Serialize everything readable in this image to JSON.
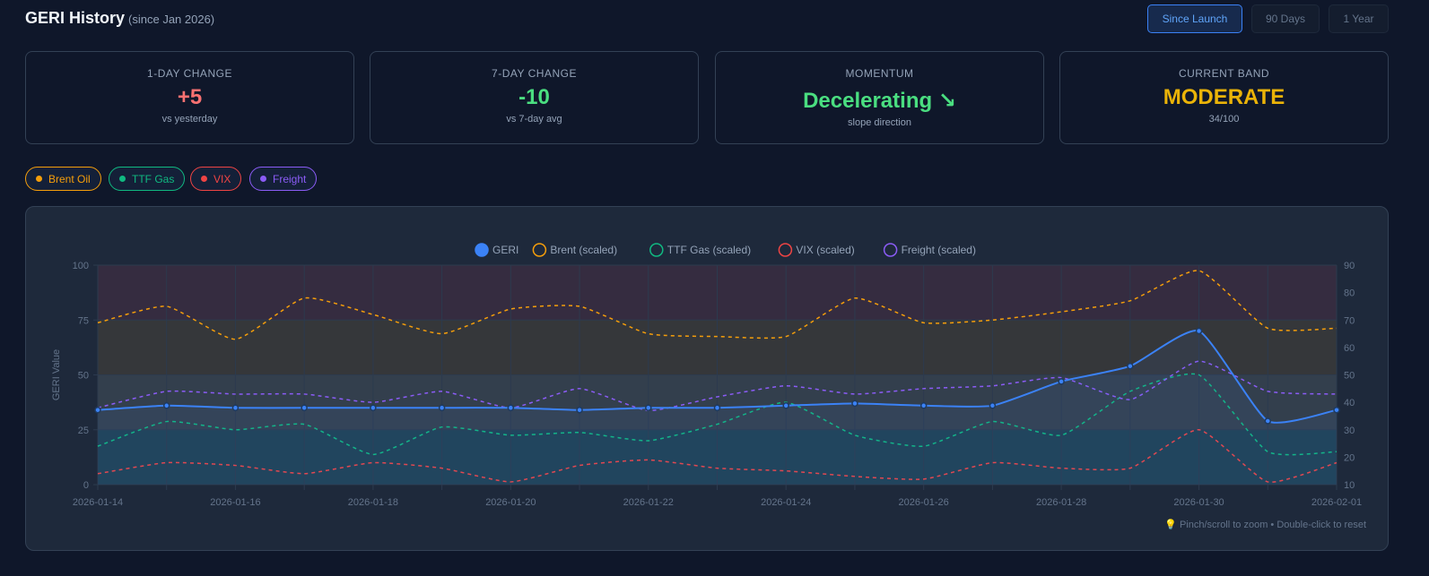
{
  "header": {
    "title": "GERI History",
    "subtitle": "(since Jan 2026)"
  },
  "range_buttons": [
    {
      "label": "Since Launch",
      "active": true
    },
    {
      "label": "90 Days",
      "active": false
    },
    {
      "label": "1 Year",
      "active": false
    }
  ],
  "cards": [
    {
      "label": "1-DAY CHANGE",
      "value": "+5",
      "sub": "vs yesterday",
      "color": "#f87171"
    },
    {
      "label": "7-DAY CHANGE",
      "value": "-10",
      "sub": "vs 7-day avg",
      "color": "#4ade80"
    },
    {
      "label": "MOMENTUM",
      "value": "Decelerating ↘",
      "sub": "slope direction",
      "color": "#4ade80"
    },
    {
      "label": "CURRENT BAND",
      "value": "MODERATE",
      "sub": "34/100",
      "color": "#eab308"
    }
  ],
  "toggles": [
    {
      "label": "Brent Oil",
      "color": "#f59e0b"
    },
    {
      "label": "TTF Gas",
      "color": "#10b981"
    },
    {
      "label": "VIX",
      "color": "#ef4444"
    },
    {
      "label": "Freight",
      "color": "#8b5cf6"
    }
  ],
  "hint": "💡 Pinch/scroll to zoom • Double-click to reset",
  "chart_data": {
    "type": "line",
    "ylabel": "GERI Value",
    "ylim": [
      0,
      100
    ],
    "y_ticks": [
      "0",
      "25",
      "50",
      "75",
      "100"
    ],
    "y2lim": [
      10,
      90
    ],
    "y2_ticks": [
      "10",
      "20",
      "30",
      "40",
      "50",
      "60",
      "70",
      "80",
      "90"
    ],
    "x": [
      "2026-01-14",
      "2026-01-15",
      "2026-01-16",
      "2026-01-17",
      "2026-01-18",
      "2026-01-19",
      "2026-01-20",
      "2026-01-21",
      "2026-01-22",
      "2026-01-23",
      "2026-01-24",
      "2026-01-25",
      "2026-01-26",
      "2026-01-27",
      "2026-01-28",
      "2026-01-29",
      "2026-01-30",
      "2026-01-31",
      "2026-02-01"
    ],
    "x_ticks": [
      "2026-01-14",
      "2026-01-16",
      "2026-01-18",
      "2026-01-20",
      "2026-01-22",
      "2026-01-24",
      "2026-01-26",
      "2026-01-28",
      "2026-01-30",
      "2026-02-01"
    ],
    "bands": [
      {
        "from": 0,
        "to": 25,
        "color": "#1f4152"
      },
      {
        "from": 25,
        "to": 50,
        "color": "#333f4d"
      },
      {
        "from": 50,
        "to": 75,
        "color": "#35373a"
      },
      {
        "from": 75,
        "to": 100,
        "color": "#352c40"
      }
    ],
    "grid": true,
    "legend": "top",
    "series": [
      {
        "name": "GERI",
        "axis": "left",
        "color": "#3b82f6",
        "dashed": false,
        "values": [
          34,
          36,
          35,
          35,
          35,
          35,
          35,
          34,
          35,
          35,
          36,
          37,
          36,
          36,
          47,
          54,
          70,
          29,
          34
        ]
      },
      {
        "name": "Brent (scaled)",
        "axis": "right",
        "color": "#f59e0b",
        "dashed": true,
        "values": [
          69,
          75,
          63,
          78,
          72,
          65,
          74,
          75,
          65,
          64,
          64,
          78,
          69,
          70,
          73,
          77,
          88,
          67,
          67
        ]
      },
      {
        "name": "TTF Gas (scaled)",
        "axis": "right",
        "color": "#10b981",
        "dashed": true,
        "values": [
          24,
          33,
          30,
          32,
          21,
          31,
          28,
          29,
          26,
          32,
          40,
          28,
          24,
          33,
          28,
          44,
          50,
          22,
          22
        ]
      },
      {
        "name": "VIX (scaled)",
        "axis": "right",
        "color": "#ef4444",
        "dashed": true,
        "values": [
          14,
          18,
          17,
          14,
          18,
          16,
          11,
          17,
          19,
          16,
          15,
          13,
          12,
          18,
          16,
          16,
          30,
          11,
          18
        ]
      },
      {
        "name": "Freight (scaled)",
        "axis": "right",
        "color": "#8b5cf6",
        "dashed": true,
        "values": [
          38,
          44,
          43,
          43,
          40,
          44,
          38,
          45,
          37,
          42,
          46,
          43,
          45,
          46,
          49,
          41,
          55,
          44,
          43
        ]
      }
    ]
  }
}
